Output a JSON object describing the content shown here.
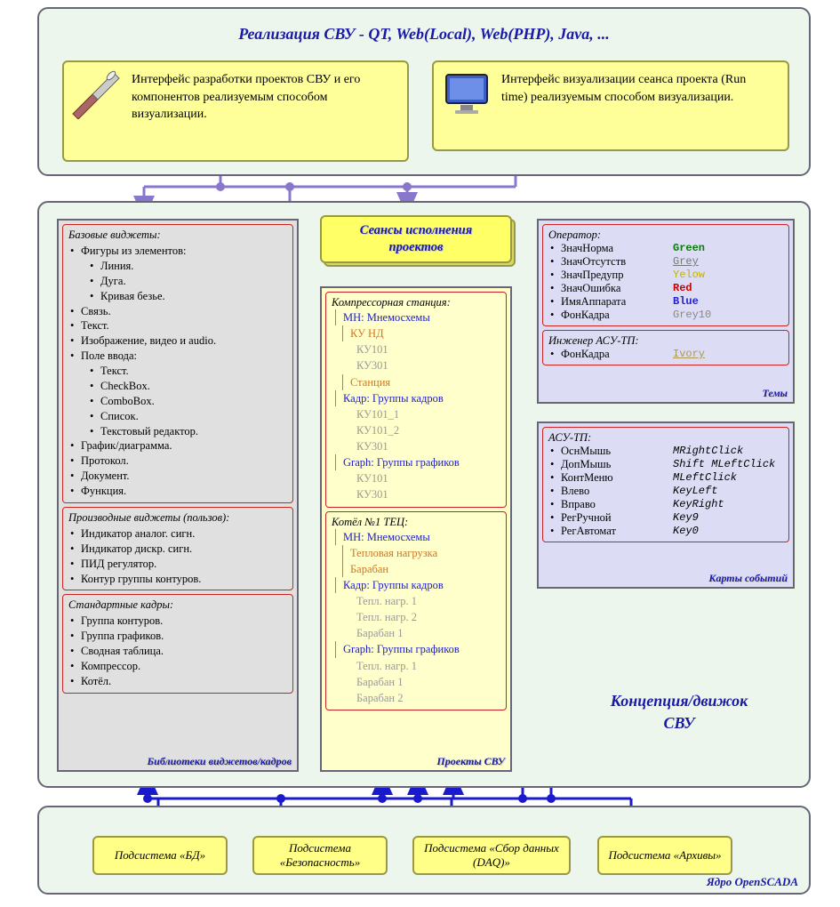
{
  "colors": {
    "panel_bg": "#ecf6ec",
    "panel_border": "#667788",
    "yellow_bg": "#ffff99",
    "yellow_border": "#999944",
    "grey_bg": "#e0e0e0",
    "lilac_bg": "#dcdcf5",
    "proj_bg": "#ffffcc",
    "redbox_border": "#cc2222",
    "heading_color": "#1919a8",
    "conn_purple": "#8877cc",
    "conn_blue": "#1a1acc"
  },
  "top": {
    "title": "Реализация СВУ - QT, Web(Local), Web(PHP), Java, ...",
    "left_text": "Интерфейс разработки проектов СВУ и его компонентов реализуемым способом визуализации.",
    "right_text": "Интерфейс визуализации сеанса проекта (Run time) реализуемым способом визуализации."
  },
  "wlib": {
    "footer": "Библиотеки виджетов/кадров",
    "base": {
      "title": "Базовые виджеты:",
      "items": [
        {
          "t": "Фигуры из элементов:",
          "sub": [
            "Линия.",
            "Дуга.",
            "Кривая безье."
          ]
        },
        {
          "t": "Связь."
        },
        {
          "t": "Текст."
        },
        {
          "t": "Изображение, видео и audio."
        },
        {
          "t": "Поле ввода:",
          "sub": [
            "Текст.",
            "CheckBox.",
            "ComboBox.",
            "Список.",
            "Текстовый редактор."
          ]
        },
        {
          "t": "График/диаграмма."
        },
        {
          "t": "Протокол."
        },
        {
          "t": "Документ."
        },
        {
          "t": "Функция."
        }
      ]
    },
    "deriv": {
      "title": "Производные виджеты (пользов):",
      "items": [
        "Индикатор аналог. сигн.",
        "Индикатор дискр. сигн.",
        "ПИД регулятор.",
        "Контур группы контуров."
      ]
    },
    "std": {
      "title": "Стандартные кадры:",
      "items": [
        "Группа контуров.",
        "Группа графиков.",
        "Сводная таблица.",
        "Компрессор.",
        "Котёл."
      ]
    }
  },
  "sessions_title_l1": "Сеансы исполнения",
  "sessions_title_l2": "проектов",
  "projects": {
    "footer": "Проекты СВУ",
    "p1": {
      "title": "Компрессорная станция:",
      "tree": [
        {
          "cls": "blue n0",
          "t": "МН: Мнемосхемы"
        },
        {
          "cls": "orange n1",
          "t": "КУ НД"
        },
        {
          "cls": "grey n2",
          "t": "КУ101"
        },
        {
          "cls": "grey n2",
          "t": "КУ301"
        },
        {
          "cls": "orange n1",
          "t": "Станция"
        },
        {
          "cls": "blue n0",
          "t": "Кадр: Группы кадров"
        },
        {
          "cls": "grey n2",
          "t": "КУ101_1"
        },
        {
          "cls": "grey n2",
          "t": "КУ101_2"
        },
        {
          "cls": "grey n2",
          "t": "КУ301"
        },
        {
          "cls": "blue n0",
          "t": "Graph: Группы графиков"
        },
        {
          "cls": "grey n2",
          "t": "КУ101"
        },
        {
          "cls": "grey n2",
          "t": "КУ301"
        }
      ]
    },
    "p2": {
      "title": "Котёл №1 ТЕЦ:",
      "tree": [
        {
          "cls": "blue n0",
          "t": "МН: Мнемосхемы"
        },
        {
          "cls": "orange n1",
          "t": "Тепловая нагрузка"
        },
        {
          "cls": "orange n1",
          "t": "Барабан"
        },
        {
          "cls": "blue n0",
          "t": "Кадр: Группы кадров"
        },
        {
          "cls": "grey n2",
          "t": "Тепл. нагр. 1"
        },
        {
          "cls": "grey n2",
          "t": "Тепл. нагр. 2"
        },
        {
          "cls": "grey n2",
          "t": "Барабан 1"
        },
        {
          "cls": "blue n0",
          "t": "Graph: Группы графиков"
        },
        {
          "cls": "grey n2",
          "t": "Тепл. нагр. 1"
        },
        {
          "cls": "grey n2",
          "t": "Барабан 1"
        },
        {
          "cls": "grey n2",
          "t": "Барабан 2"
        }
      ]
    }
  },
  "themes": {
    "footer": "Темы",
    "operator": {
      "title": "Оператор:",
      "rows": [
        {
          "k": "ЗначНорма",
          "v": "Green",
          "c": "c-green"
        },
        {
          "k": "ЗначОтсутств",
          "v": "Grey",
          "c": "c-grey"
        },
        {
          "k": "ЗначПредупр",
          "v": "Yelow",
          "c": "c-yellow"
        },
        {
          "k": "ЗначОшибка",
          "v": "Red",
          "c": "c-red"
        },
        {
          "k": "ИмяАппарата",
          "v": "Blue",
          "c": "c-blue"
        },
        {
          "k": "ФонКадра",
          "v": "Grey10",
          "c": "c-grey10"
        }
      ]
    },
    "engineer": {
      "title": "Инженер АСУ-ТП:",
      "rows": [
        {
          "k": "ФонКадра",
          "v": "Ivory",
          "c": "c-ivory"
        }
      ]
    }
  },
  "events": {
    "footer": "Карты событий",
    "title": "АСУ-ТП:",
    "rows": [
      {
        "k": "ОснМышь",
        "v": "MRightClick"
      },
      {
        "k": "ДопМышь",
        "v": "Shift MLeftClick"
      },
      {
        "k": "КонтМеню",
        "v": "MLeftClick"
      },
      {
        "k": "Влево",
        "v": "KeyLeft"
      },
      {
        "k": "Вправо",
        "v": "KeyRight"
      },
      {
        "k": "РегРучной",
        "v": "Key9"
      },
      {
        "k": "РегАвтомат",
        "v": "Key0"
      }
    ]
  },
  "concept_l1": "Концепция/движок",
  "concept_l2": "СВУ",
  "bottom": {
    "footer": "Ядро OpenSCADA",
    "subs": [
      "Подсистема «БД»",
      "Подсистема «Безопасность»",
      "Подсистема «Сбор данных (DAQ)»",
      "Подсистема «Архивы»"
    ]
  }
}
